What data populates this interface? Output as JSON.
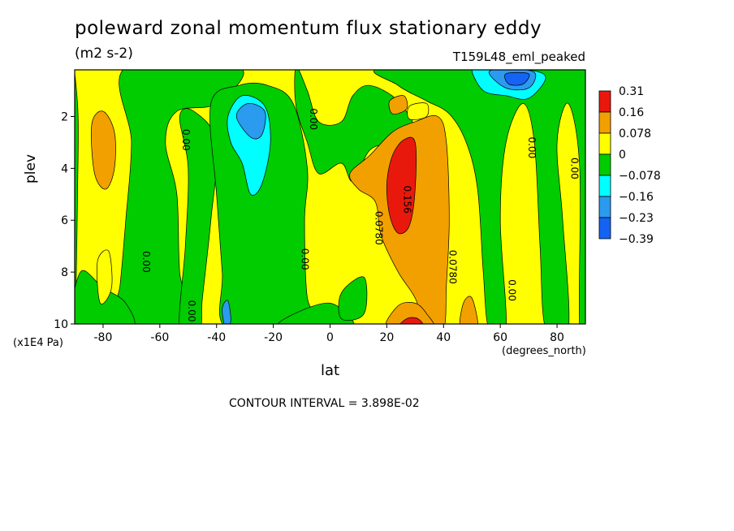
{
  "chart_data": {
    "type": "heatmap",
    "title": "poleward zonal momentum flux stationary eddy",
    "units": "(m2 s-2)",
    "run_label": "T159L48_eml_peaked",
    "xlabel": "lat",
    "x_units": "(degrees_north)",
    "ylabel": "plev",
    "y_multiplier": "(x1E4 Pa)",
    "xlim": [
      -90,
      90
    ],
    "ylim": [
      10,
      0.2
    ],
    "x_ticks": [
      -80,
      -60,
      -40,
      -20,
      0,
      20,
      40,
      60,
      80
    ],
    "y_ticks": [
      2,
      4,
      6,
      8,
      10
    ],
    "colorbar": {
      "levels": [
        "0.31",
        "0.16",
        "0.078",
        "0",
        "-0.078",
        "-0.16",
        "-0.23",
        "-0.39"
      ],
      "colors": [
        "#e8190c",
        "#f2a000",
        "#ffff00",
        "#00cc00",
        "#00ffff",
        "#2a9bef",
        "#1463f5"
      ]
    },
    "contour_labels": [
      {
        "text": "0.00",
        "lat": -52,
        "plev": 2.9
      },
      {
        "text": "0.00",
        "lat": -7,
        "plev": 2.1
      },
      {
        "text": "0.00",
        "lat": -66,
        "plev": 7.6
      },
      {
        "text": "0.00",
        "lat": -50,
        "plev": 9.5
      },
      {
        "text": "0.00",
        "lat": -10,
        "plev": 7.5
      },
      {
        "text": "0.0780",
        "lat": 16,
        "plev": 6.3
      },
      {
        "text": "0.156",
        "lat": 26,
        "plev": 5.2
      },
      {
        "text": "0.0780",
        "lat": 42,
        "plev": 7.8
      },
      {
        "text": "0.00",
        "lat": 70,
        "plev": 3.2
      },
      {
        "text": "0.00",
        "lat": 85,
        "plev": 4.0
      },
      {
        "text": "0.00",
        "lat": 63,
        "plev": 8.7
      }
    ],
    "contour_interval": "CONTOUR INTERVAL = 3.898E-02"
  }
}
